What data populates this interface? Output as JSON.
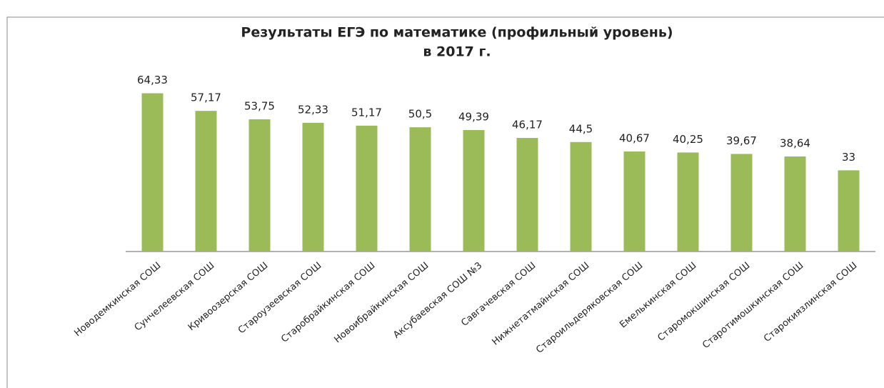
{
  "chart_data": {
    "type": "bar",
    "title": [
      "Результаты ЕГЭ по математике (профильный уровень)",
      "в 2017 г."
    ],
    "categories": [
      "Новодемкинская СОШ",
      "Сунчелеевская СОШ",
      "Кривоозерская СОШ",
      "Староузеевская СОШ",
      "Старобрайкинская СОШ",
      "Новоибрайкинская СОШ",
      "Аксубаевская СОШ №3",
      "Савгачевская СОШ",
      "Нижнетатмайнская СОШ",
      "Староильдеряковская СОШ",
      "Емелькинская СОШ",
      "Старомокшинская СОШ",
      "Старотимошкинская СОШ",
      "Старокиязлинская СОШ"
    ],
    "values": [
      64.33,
      57.17,
      53.75,
      52.33,
      51.17,
      50.5,
      49.39,
      46.17,
      44.5,
      40.67,
      40.25,
      39.67,
      38.64,
      33
    ],
    "value_labels": [
      "64,33",
      "57,17",
      "53,75",
      "52,33",
      "51,17",
      "50,5",
      "49,39",
      "46,17",
      "44,5",
      "40,67",
      "40,25",
      "39,67",
      "38,64",
      "33"
    ],
    "color": "#9bbb59",
    "ylim": [
      0,
      70
    ]
  }
}
